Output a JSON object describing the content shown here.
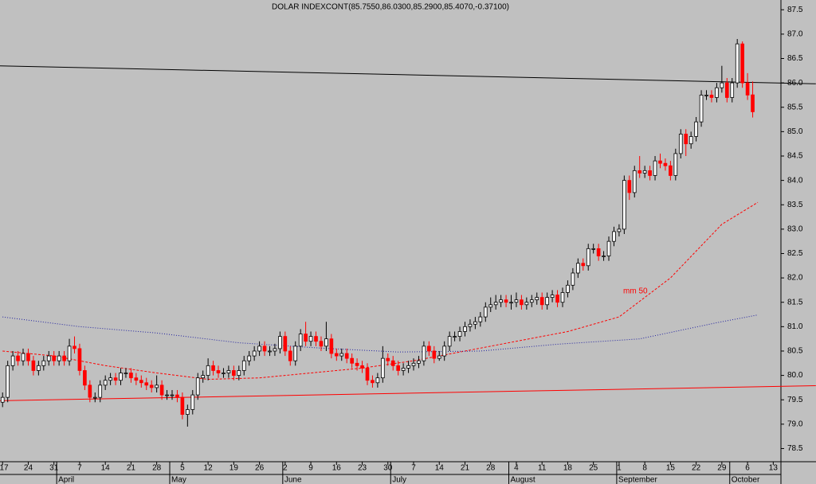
{
  "chart_data": {
    "type": "candlestick",
    "title": "DOLAR INDEXCONT(85.7550,86.0300,85.2900,85.4070,-0.37100)",
    "xlim": [
      -0.5,
      151.5
    ],
    "ylim": [
      78.23,
      87.7
    ],
    "yticks": [
      78.5,
      {
        "value": 79,
        "label": "79.0"
      },
      79.5,
      {
        "value": 80,
        "label": "80.0"
      },
      80.5,
      {
        "value": 81,
        "label": "81.0"
      },
      81.5,
      {
        "value": 82,
        "label": "82.0"
      },
      82.5,
      {
        "value": 83,
        "label": "83.0"
      },
      83.5,
      {
        "value": 84,
        "label": "84.0"
      },
      84.5,
      {
        "value": 85,
        "label": "85.0"
      },
      85.5,
      {
        "value": 86,
        "label": "86.0"
      },
      86.5,
      {
        "value": 87,
        "label": "87.0"
      },
      87.5
    ],
    "xticks": [
      {
        "value": 0,
        "label": "17"
      },
      {
        "value": 5,
        "label": "24"
      },
      {
        "value": 10,
        "label": "31"
      },
      {
        "value": 15,
        "label": "7"
      },
      {
        "value": 20,
        "label": "14"
      },
      {
        "value": 25,
        "label": "21"
      },
      {
        "value": 30,
        "label": "28"
      },
      {
        "value": 35,
        "label": "5"
      },
      {
        "value": 40,
        "label": "12"
      },
      {
        "value": 45,
        "label": "19"
      },
      {
        "value": 50,
        "label": "26"
      },
      {
        "value": 55,
        "label": "2"
      },
      {
        "value": 60,
        "label": "9"
      },
      {
        "value": 65,
        "label": "16"
      },
      {
        "value": 70,
        "label": "23"
      },
      {
        "value": 75,
        "label": "30"
      },
      {
        "value": 80,
        "label": "7"
      },
      {
        "value": 85,
        "label": "14"
      },
      {
        "value": 90,
        "label": "21"
      },
      {
        "value": 95,
        "label": "28"
      },
      {
        "value": 100,
        "label": "4"
      },
      {
        "value": 105,
        "label": "11"
      },
      {
        "value": 110,
        "label": "18"
      },
      {
        "value": 115,
        "label": "25"
      },
      {
        "value": 120,
        "label": "1"
      },
      {
        "value": 125,
        "label": "8"
      },
      {
        "value": 130,
        "label": "15"
      },
      {
        "value": 135,
        "label": "22"
      },
      {
        "value": 140,
        "label": "29"
      },
      {
        "value": 145,
        "label": "6"
      },
      {
        "value": 150,
        "label": "13"
      }
    ],
    "months": [
      {
        "value": 11,
        "label": "April"
      },
      {
        "value": 33,
        "label": "May"
      },
      {
        "value": 55,
        "label": "June"
      },
      {
        "value": 76,
        "label": "July"
      },
      {
        "value": 99,
        "label": "August"
      },
      {
        "value": 120,
        "label": "September"
      },
      {
        "value": 142,
        "label": "October"
      }
    ],
    "up_color": "#ffffff",
    "down_color": "#ff0000",
    "candles": [
      [
        79.45,
        79.65,
        79.35,
        79.55
      ],
      [
        79.55,
        80.3,
        79.45,
        80.2
      ],
      [
        80.2,
        80.5,
        80.1,
        80.4
      ],
      [
        80.4,
        80.5,
        80.2,
        80.3
      ],
      [
        80.3,
        80.55,
        80.2,
        80.45
      ],
      [
        80.45,
        80.55,
        80.2,
        80.3
      ],
      [
        80.3,
        80.4,
        80.0,
        80.1
      ],
      [
        80.1,
        80.3,
        80.0,
        80.2
      ],
      [
        80.2,
        80.4,
        80.1,
        80.3
      ],
      [
        80.3,
        80.5,
        80.2,
        80.4
      ],
      [
        80.4,
        80.5,
        80.2,
        80.3
      ],
      [
        80.3,
        80.5,
        80.2,
        80.4
      ],
      [
        80.4,
        80.5,
        80.2,
        80.3
      ],
      [
        80.3,
        80.75,
        80.2,
        80.6
      ],
      [
        80.6,
        80.8,
        80.45,
        80.55
      ],
      [
        80.55,
        80.65,
        80.0,
        80.1
      ],
      [
        80.1,
        80.2,
        79.7,
        79.8
      ],
      [
        79.8,
        79.9,
        79.45,
        79.55
      ],
      [
        79.55,
        79.65,
        79.45,
        79.55
      ],
      [
        79.55,
        79.9,
        79.45,
        79.8
      ],
      [
        79.8,
        80.0,
        79.7,
        79.9
      ],
      [
        79.9,
        80.05,
        79.8,
        79.95
      ],
      [
        79.95,
        80.05,
        79.8,
        79.9
      ],
      [
        79.9,
        80.15,
        79.8,
        80.05
      ],
      [
        80.05,
        80.15,
        79.95,
        80.05
      ],
      [
        80.05,
        80.15,
        79.85,
        79.95
      ],
      [
        79.95,
        80.05,
        79.8,
        79.9
      ],
      [
        79.9,
        80.0,
        79.75,
        79.85
      ],
      [
        79.85,
        79.95,
        79.7,
        79.8
      ],
      [
        79.8,
        79.9,
        79.65,
        79.75
      ],
      [
        79.75,
        80.0,
        79.65,
        79.8
      ],
      [
        79.8,
        79.9,
        79.5,
        79.6
      ],
      [
        79.6,
        79.7,
        79.5,
        79.6
      ],
      [
        79.6,
        79.7,
        79.5,
        79.6
      ],
      [
        79.6,
        79.7,
        79.45,
        79.55
      ],
      [
        79.55,
        79.65,
        79.1,
        79.2
      ],
      [
        79.2,
        79.4,
        78.95,
        79.3
      ],
      [
        79.3,
        79.7,
        79.2,
        79.6
      ],
      [
        79.6,
        80.05,
        79.5,
        79.95
      ],
      [
        79.95,
        80.1,
        79.85,
        80.0
      ],
      [
        80.0,
        80.35,
        79.9,
        80.2
      ],
      [
        80.2,
        80.3,
        80.0,
        80.1
      ],
      [
        80.1,
        80.2,
        79.95,
        80.05
      ],
      [
        80.05,
        80.15,
        79.95,
        80.05
      ],
      [
        80.05,
        80.2,
        79.95,
        80.1
      ],
      [
        80.1,
        80.2,
        79.9,
        80.0
      ],
      [
        80.0,
        80.2,
        79.9,
        80.1
      ],
      [
        80.1,
        80.4,
        80.0,
        80.3
      ],
      [
        80.3,
        80.5,
        80.2,
        80.4
      ],
      [
        80.4,
        80.6,
        80.3,
        80.5
      ],
      [
        80.5,
        80.7,
        80.4,
        80.6
      ],
      [
        80.6,
        80.7,
        80.4,
        80.5
      ],
      [
        80.5,
        80.6,
        80.4,
        80.5
      ],
      [
        80.5,
        80.65,
        80.4,
        80.55
      ],
      [
        80.55,
        80.9,
        80.45,
        80.8
      ],
      [
        80.8,
        80.9,
        80.4,
        80.5
      ],
      [
        80.5,
        80.6,
        80.2,
        80.3
      ],
      [
        80.3,
        80.7,
        80.2,
        80.6
      ],
      [
        80.6,
        80.95,
        80.5,
        80.85
      ],
      [
        80.85,
        81.1,
        80.6,
        80.7
      ],
      [
        80.7,
        80.9,
        80.6,
        80.8
      ],
      [
        80.8,
        80.9,
        80.6,
        80.7
      ],
      [
        80.7,
        80.8,
        80.5,
        80.6
      ],
      [
        80.6,
        81.1,
        80.5,
        80.75
      ],
      [
        80.75,
        80.85,
        80.35,
        80.45
      ],
      [
        80.45,
        80.55,
        80.3,
        80.4
      ],
      [
        80.4,
        80.55,
        80.3,
        80.45
      ],
      [
        80.45,
        80.55,
        80.25,
        80.35
      ],
      [
        80.35,
        80.45,
        80.15,
        80.25
      ],
      [
        80.25,
        80.35,
        80.1,
        80.2
      ],
      [
        80.2,
        80.3,
        80.05,
        80.15
      ],
      [
        80.15,
        80.25,
        79.8,
        79.9
      ],
      [
        79.9,
        80.0,
        79.75,
        79.85
      ],
      [
        79.85,
        80.05,
        79.75,
        79.95
      ],
      [
        79.95,
        80.6,
        79.85,
        80.35
      ],
      [
        80.35,
        80.45,
        80.2,
        80.3
      ],
      [
        80.3,
        80.4,
        80.1,
        80.2
      ],
      [
        80.2,
        80.3,
        80.0,
        80.1
      ],
      [
        80.1,
        80.25,
        80.0,
        80.15
      ],
      [
        80.15,
        80.3,
        80.05,
        80.2
      ],
      [
        80.2,
        80.35,
        80.1,
        80.25
      ],
      [
        80.25,
        80.4,
        80.15,
        80.3
      ],
      [
        80.3,
        80.7,
        80.2,
        80.6
      ],
      [
        80.6,
        80.7,
        80.4,
        80.5
      ],
      [
        80.5,
        80.6,
        80.25,
        80.35
      ],
      [
        80.35,
        80.5,
        80.3,
        80.4
      ],
      [
        80.4,
        80.7,
        80.3,
        80.6
      ],
      [
        80.6,
        80.9,
        80.5,
        80.8
      ],
      [
        80.8,
        80.9,
        80.7,
        80.8
      ],
      [
        80.8,
        81.0,
        80.7,
        80.9
      ],
      [
        80.9,
        81.1,
        80.8,
        81.0
      ],
      [
        81.0,
        81.15,
        80.9,
        81.05
      ],
      [
        81.05,
        81.2,
        80.95,
        81.1
      ],
      [
        81.1,
        81.3,
        81.0,
        81.2
      ],
      [
        81.2,
        81.5,
        81.1,
        81.4
      ],
      [
        81.4,
        81.6,
        81.3,
        81.45
      ],
      [
        81.45,
        81.65,
        81.35,
        81.5
      ],
      [
        81.5,
        81.65,
        81.4,
        81.55
      ],
      [
        81.55,
        81.65,
        81.4,
        81.5
      ],
      [
        81.5,
        81.65,
        81.35,
        81.5
      ],
      [
        81.5,
        81.7,
        81.4,
        81.55
      ],
      [
        81.55,
        81.65,
        81.35,
        81.45
      ],
      [
        81.45,
        81.6,
        81.35,
        81.5
      ],
      [
        81.5,
        81.65,
        81.4,
        81.55
      ],
      [
        81.55,
        81.7,
        81.45,
        81.6
      ],
      [
        81.6,
        81.7,
        81.35,
        81.45
      ],
      [
        81.45,
        81.7,
        81.35,
        81.6
      ],
      [
        81.6,
        81.75,
        81.5,
        81.65
      ],
      [
        81.65,
        81.75,
        81.4,
        81.5
      ],
      [
        81.5,
        81.8,
        81.4,
        81.7
      ],
      [
        81.7,
        81.95,
        81.6,
        81.85
      ],
      [
        81.85,
        82.2,
        81.75,
        82.1
      ],
      [
        82.1,
        82.4,
        82.0,
        82.3
      ],
      [
        82.3,
        82.4,
        82.15,
        82.25
      ],
      [
        82.25,
        82.7,
        82.15,
        82.6
      ],
      [
        82.6,
        82.7,
        82.5,
        82.6
      ],
      [
        82.6,
        82.7,
        82.35,
        82.45
      ],
      [
        82.45,
        82.55,
        82.35,
        82.45
      ],
      [
        82.45,
        82.85,
        82.35,
        82.75
      ],
      [
        82.75,
        83.05,
        82.65,
        82.95
      ],
      [
        82.95,
        83.1,
        82.85,
        83.0
      ],
      [
        83.0,
        84.1,
        82.9,
        84.0
      ],
      [
        84.0,
        84.1,
        83.6,
        83.75
      ],
      [
        83.75,
        84.3,
        83.65,
        84.2
      ],
      [
        84.2,
        84.5,
        84.05,
        84.15
      ],
      [
        84.15,
        84.3,
        84.05,
        84.2
      ],
      [
        84.2,
        84.3,
        84.0,
        84.1
      ],
      [
        84.1,
        84.5,
        84.0,
        84.4
      ],
      [
        84.4,
        84.55,
        84.25,
        84.35
      ],
      [
        84.35,
        84.45,
        84.2,
        84.3
      ],
      [
        84.3,
        84.4,
        84.0,
        84.1
      ],
      [
        84.1,
        84.65,
        84.0,
        84.55
      ],
      [
        84.55,
        85.05,
        84.45,
        84.95
      ],
      [
        84.95,
        85.05,
        84.5,
        84.75
      ],
      [
        84.75,
        85.0,
        84.65,
        84.9
      ],
      [
        84.9,
        85.3,
        84.8,
        85.2
      ],
      [
        85.2,
        85.85,
        85.1,
        85.75
      ],
      [
        85.75,
        85.85,
        85.65,
        85.75
      ],
      [
        85.75,
        85.85,
        85.6,
        85.7
      ],
      [
        85.7,
        86.0,
        85.6,
        85.9
      ],
      [
        85.9,
        86.35,
        85.8,
        86.0
      ],
      [
        86.0,
        86.1,
        85.6,
        85.7
      ],
      [
        85.7,
        86.1,
        85.6,
        86.0
      ],
      [
        86.0,
        86.9,
        85.9,
        86.8
      ],
      [
        86.8,
        86.85,
        85.9,
        86.0
      ],
      [
        86.0,
        86.2,
        85.65,
        85.75
      ],
      [
        85.755,
        86.03,
        85.29,
        85.407
      ]
    ],
    "lines": [
      {
        "name": "mm 50",
        "color": "#ff0000",
        "style": "dashed",
        "x": [
          0,
          10,
          20,
          30,
          40,
          50,
          60,
          70,
          80,
          90,
          100,
          110,
          120,
          130,
          140,
          147
        ],
        "values": [
          80.5,
          80.4,
          80.2,
          80.05,
          79.92,
          79.95,
          80.05,
          80.15,
          80.3,
          80.5,
          80.7,
          80.9,
          81.2,
          82.0,
          83.1,
          83.55
        ]
      },
      {
        "color": "#2020a0",
        "style": "dotted",
        "x": [
          0,
          15,
          30,
          46,
          62,
          77,
          93,
          108,
          124,
          139,
          147
        ],
        "values": [
          81.2,
          81.0,
          80.87,
          80.67,
          80.56,
          80.48,
          80.5,
          80.64,
          80.75,
          81.08,
          81.24
        ]
      },
      {
        "color": "#000000",
        "style": "solid",
        "x": [
          -0.5,
          158.3
        ],
        "values": [
          86.35,
          85.98
        ]
      },
      {
        "color": "#ff0000",
        "style": "solid",
        "x": [
          -0.5,
          158.3
        ],
        "values": [
          79.48,
          79.79
        ]
      }
    ]
  }
}
